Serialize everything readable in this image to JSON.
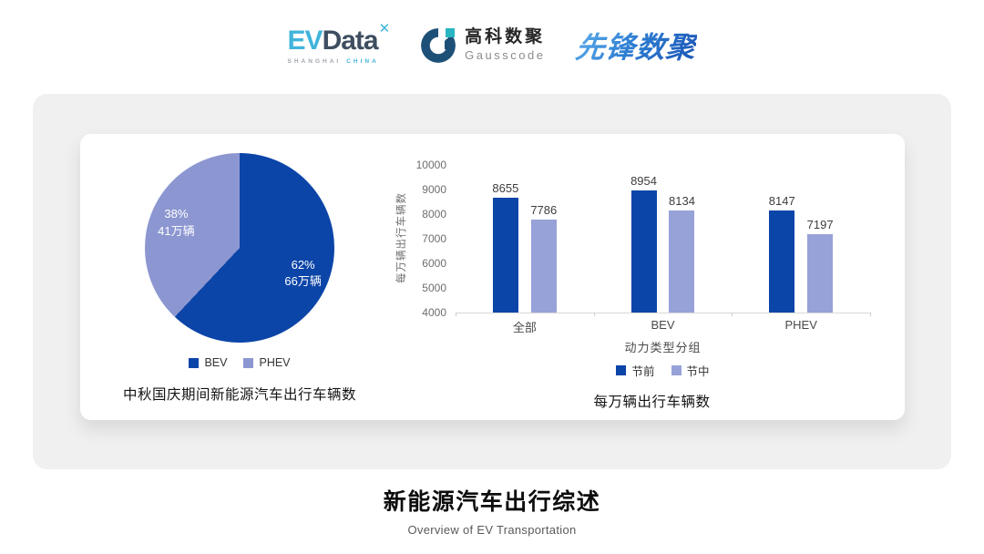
{
  "header": {
    "evdata": {
      "part1": "EV",
      "part2": "Data",
      "superscript": "✕",
      "tagline_left": "SHANGHAI",
      "tagline_right": "CHINA"
    },
    "gausscode": {
      "name_cn": "高科数聚",
      "name_en": "Gausscode"
    },
    "pioneer": {
      "name": "先锋数聚"
    }
  },
  "footer": {
    "title": "新能源汽车出行综述",
    "subtitle": "Overview of EV Transportation"
  },
  "colors": {
    "primary_dark_blue": "#0c45a8",
    "secondary_light_blue": "#97a2d8",
    "pie_light_blue": "#8c97d1",
    "panel_gray": "#f0f0f0"
  },
  "chart_data": [
    {
      "type": "pie",
      "title": "中秋国庆期间新能源汽车出行车辆数",
      "start_angle": "top-clockwise",
      "slices": [
        {
          "label": "BEV",
          "percent": 62,
          "amount": "66万辆",
          "color": "#0c45a8"
        },
        {
          "label": "PHEV",
          "percent": 38,
          "amount": "41万辆",
          "color": "#8c97d1"
        }
      ]
    },
    {
      "type": "bar",
      "title": "每万辆出行车辆数",
      "categories": [
        "全部",
        "BEV",
        "PHEV"
      ],
      "series": [
        {
          "name": "节前",
          "values": [
            8655,
            8954,
            8147
          ],
          "color": "#0c45a8"
        },
        {
          "name": "节中",
          "values": [
            7786,
            8134,
            7197
          ],
          "color": "#97a2d8"
        }
      ],
      "ylabel": "每万辆出行车辆数",
      "xlabel": "动力类型分组",
      "ylim": [
        4000,
        10000
      ],
      "yticks": [
        4000,
        5000,
        6000,
        7000,
        8000,
        9000,
        10000
      ],
      "grid": false,
      "legend_position": "bottom"
    }
  ]
}
